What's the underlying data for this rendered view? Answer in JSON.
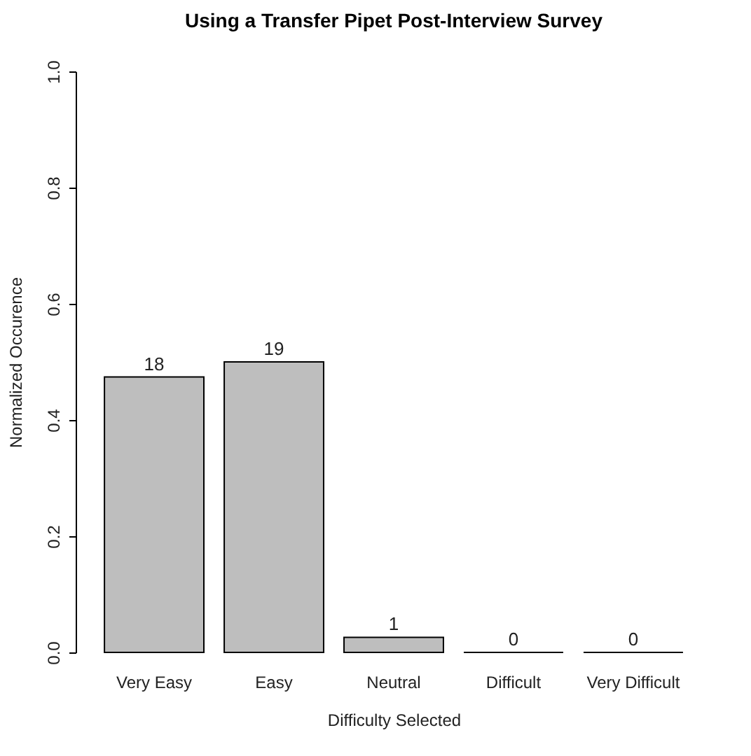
{
  "chart_data": {
    "type": "bar",
    "title": "Using a Transfer Pipet Post-Interview Survey",
    "xlabel": "Difficulty Selected",
    "ylabel": "Normalized Occurence",
    "categories": [
      "Very Easy",
      "Easy",
      "Neutral",
      "Difficult",
      "Very Difficult"
    ],
    "values": [
      0.474,
      0.5,
      0.026,
      0,
      0
    ],
    "annotations": [
      {
        "text": "18",
        "x": "Very Easy",
        "y": 0.474
      },
      {
        "text": "19",
        "x": "Easy",
        "y": 0.5
      },
      {
        "text": "1",
        "x": "Neutral",
        "y": 0.026
      },
      {
        "text": "0",
        "x": "Difficult",
        "y": 0
      },
      {
        "text": "0",
        "x": "Very Difficult",
        "y": 0
      }
    ],
    "color": "#bebebe",
    "ylim": [
      0,
      1
    ],
    "yticks": [
      {
        "value": 0,
        "label": "0.0"
      },
      {
        "value": 0.2,
        "label": "0.2"
      },
      {
        "value": 0.4,
        "label": "0.4"
      },
      {
        "value": 0.6,
        "label": "0.6"
      },
      {
        "value": 0.8,
        "label": "0.8"
      },
      {
        "value": 1,
        "label": "1.0"
      }
    ],
    "grid": false
  }
}
